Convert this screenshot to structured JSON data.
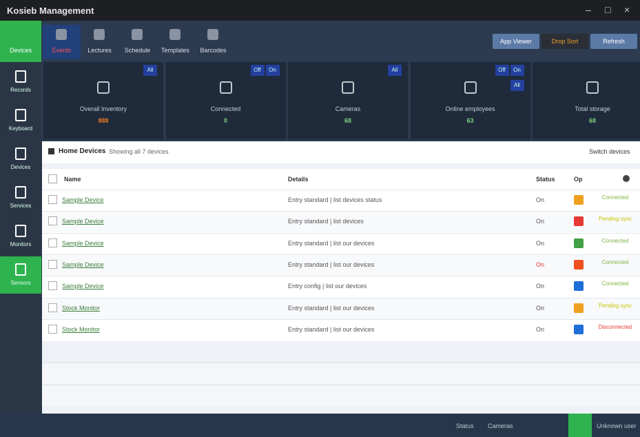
{
  "header": {
    "title": "Kosieb Management"
  },
  "toolbar": {
    "home": "Devices",
    "tabs": [
      "Events",
      "Lectures",
      "Schedule",
      "Templates",
      "Barcodes"
    ],
    "buttons": [
      "App Viewer",
      "Drop Sort",
      "Refresh"
    ]
  },
  "sidebar": {
    "items": [
      "Records",
      "Keyboard",
      "Devices",
      "Services",
      "Monitors",
      "Sensors"
    ]
  },
  "stats": [
    {
      "label": "Overall Inventory",
      "value": "888",
      "badges": [
        "All"
      ]
    },
    {
      "label": "Connected",
      "value": "0",
      "badges": [
        "On",
        "Off"
      ]
    },
    {
      "label": "Cameras",
      "value": "68",
      "badges": [
        "All"
      ]
    },
    {
      "label": "Online employees",
      "value": "63",
      "badges": [
        "On",
        "Off",
        "All"
      ]
    },
    {
      "label": "Total storage",
      "value": "68",
      "badges": []
    }
  ],
  "table": {
    "title": "Home Devices",
    "subtitle": "Showing all 7 devices",
    "action": "Switch devices",
    "columns": [
      "Name",
      "Details",
      "Status",
      "Op"
    ],
    "rows": [
      [
        "Sample Device",
        "Entry standard | list devices status",
        "On",
        "Connected"
      ],
      [
        "Sample Device",
        "Entry standard | list devices",
        "On",
        "Pending sync"
      ],
      [
        "Sample Device",
        "Entry standard | list our devices",
        "On",
        "Connected"
      ],
      [
        "Sample Device",
        "Entry standard | list our devices",
        "On",
        "Connected"
      ],
      [
        "Sample Device",
        "Entry config | list our devices",
        "On",
        "Connected"
      ],
      [
        "Stock Monitor",
        "Entry standard | list our devices",
        "On",
        "Pending sync"
      ],
      [
        "Stock Monitor",
        "Entry standard | list our devices",
        "On",
        "Disconnected"
      ]
    ]
  },
  "footer": {
    "links": [
      "Status",
      "Cameras"
    ],
    "user": "Unknown user"
  }
}
